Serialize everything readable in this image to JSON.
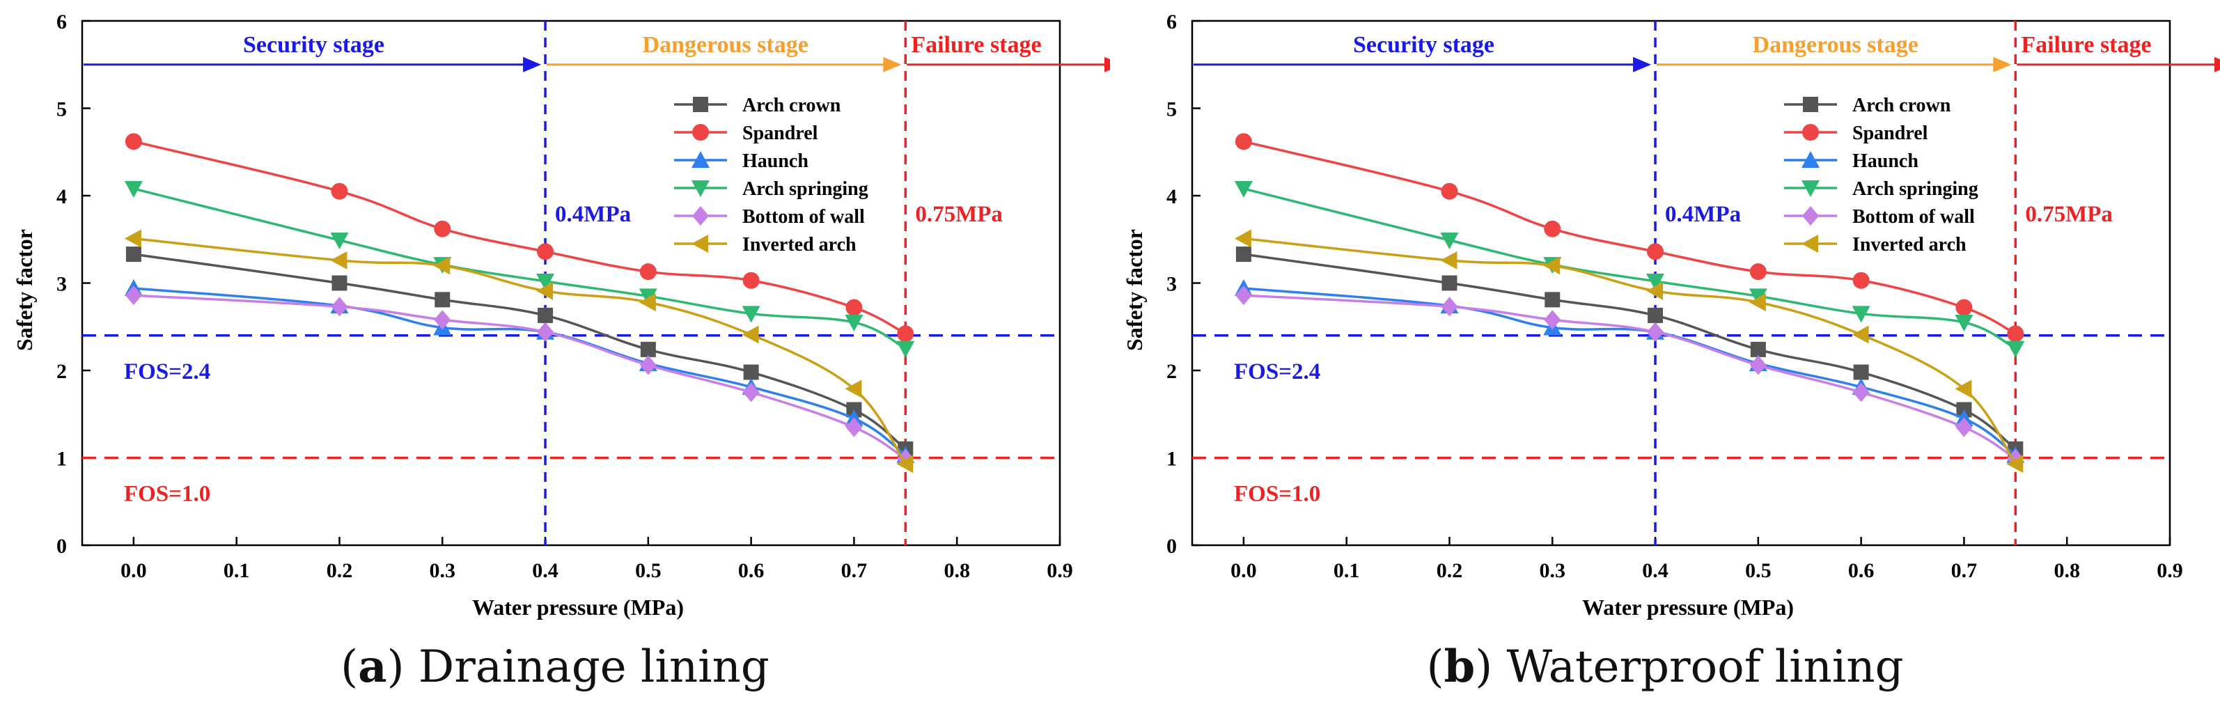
{
  "charts": [
    {
      "letter": "a",
      "caption_text": "Drainage lining"
    },
    {
      "letter": "b",
      "caption_text": "Waterproof lining"
    }
  ],
  "chart_data": [
    {
      "type": "line",
      "caption": "(a) Drainage lining",
      "xlabel": "Water pressure (MPa)",
      "ylabel": "Safety factor",
      "xlim": [
        -0.05,
        0.9
      ],
      "ylim": [
        0,
        6
      ],
      "xticks": [
        "0.0",
        "0.1",
        "0.2",
        "0.3",
        "0.4",
        "0.5",
        "0.6",
        "0.7",
        "0.8",
        "0.9"
      ],
      "yticks": [
        "0",
        "1",
        "2",
        "3",
        "4",
        "5",
        "6"
      ],
      "x": [
        0.0,
        0.2,
        0.3,
        0.4,
        0.5,
        0.6,
        0.7,
        0.75
      ],
      "series": [
        {
          "name": "Arch crown",
          "color": "#555555",
          "marker": "square",
          "values": [
            3.33,
            3.0,
            2.81,
            2.63,
            2.24,
            1.98,
            1.55,
            1.1
          ]
        },
        {
          "name": "Spandrel",
          "color": "#ef4444",
          "marker": "circle",
          "values": [
            4.62,
            4.05,
            3.62,
            3.36,
            3.13,
            3.03,
            2.72,
            2.42
          ]
        },
        {
          "name": "Haunch",
          "color": "#2e7ff0",
          "marker": "triangle-up",
          "values": [
            2.94,
            2.74,
            2.49,
            2.44,
            2.08,
            1.81,
            1.45,
            1.03
          ]
        },
        {
          "name": "Arch springing",
          "color": "#2eb872",
          "marker": "triangle-down",
          "values": [
            4.08,
            3.49,
            3.21,
            3.02,
            2.85,
            2.65,
            2.55,
            2.25
          ]
        },
        {
          "name": "Bottom of wall",
          "color": "#c77fe8",
          "marker": "diamond",
          "values": [
            2.86,
            2.73,
            2.58,
            2.44,
            2.06,
            1.75,
            1.35,
            0.99
          ]
        },
        {
          "name": "Inverted arch",
          "color": "#c9a016",
          "marker": "triangle-left",
          "values": [
            3.51,
            3.26,
            3.2,
            2.91,
            2.78,
            2.41,
            1.79,
            0.93
          ]
        }
      ],
      "reference_lines": {
        "fos_24": {
          "label": "FOS=2.4",
          "value": 2.4,
          "color": "#1a1ae6"
        },
        "fos_10": {
          "label": "FOS=1.0",
          "value": 1.0,
          "color": "#ee2222"
        },
        "p_04": {
          "label": "0.4MPa",
          "value": 0.4,
          "color": "#1a1ae6"
        },
        "p_075": {
          "label": "0.75MPa",
          "value": 0.75,
          "color": "#ee2222"
        }
      },
      "stages": [
        {
          "label": "Security stage",
          "from": -0.05,
          "to": 0.4,
          "color": "#1a1ae6"
        },
        {
          "label": "Dangerous stage",
          "from": 0.4,
          "to": 0.75,
          "color": "#f5a030"
        },
        {
          "label": "Failure stage",
          "from": 0.75,
          "to": 0.9,
          "color": "#ee2222"
        }
      ],
      "legend_position": "top-right",
      "grid": false
    },
    {
      "type": "line",
      "caption": "(b) Waterproof lining",
      "xlabel": "Water pressure (MPa)",
      "ylabel": "Safety factor",
      "xlim": [
        -0.05,
        0.9
      ],
      "ylim": [
        0,
        6
      ],
      "xticks": [
        "0.0",
        "0.1",
        "0.2",
        "0.3",
        "0.4",
        "0.5",
        "0.6",
        "0.7",
        "0.8",
        "0.9"
      ],
      "yticks": [
        "0",
        "1",
        "2",
        "3",
        "4",
        "5",
        "6"
      ],
      "x": [
        0.0,
        0.2,
        0.3,
        0.4,
        0.5,
        0.6,
        0.7,
        0.75
      ],
      "series": [
        {
          "name": "Arch crown",
          "color": "#555555",
          "marker": "square",
          "values": [
            3.33,
            3.0,
            2.81,
            2.63,
            2.24,
            1.98,
            1.55,
            1.1
          ]
        },
        {
          "name": "Spandrel",
          "color": "#ef4444",
          "marker": "circle",
          "values": [
            4.62,
            4.05,
            3.62,
            3.36,
            3.13,
            3.03,
            2.72,
            2.42
          ]
        },
        {
          "name": "Haunch",
          "color": "#2e7ff0",
          "marker": "triangle-up",
          "values": [
            2.94,
            2.74,
            2.49,
            2.44,
            2.08,
            1.81,
            1.45,
            1.03
          ]
        },
        {
          "name": "Arch springing",
          "color": "#2eb872",
          "marker": "triangle-down",
          "values": [
            4.08,
            3.49,
            3.21,
            3.02,
            2.85,
            2.65,
            2.55,
            2.25
          ]
        },
        {
          "name": "Bottom of wall",
          "color": "#c77fe8",
          "marker": "diamond",
          "values": [
            2.86,
            2.73,
            2.58,
            2.44,
            2.06,
            1.75,
            1.35,
            0.99
          ]
        },
        {
          "name": "Inverted arch",
          "color": "#c9a016",
          "marker": "triangle-left",
          "values": [
            3.51,
            3.26,
            3.2,
            2.91,
            2.78,
            2.41,
            1.79,
            0.93
          ]
        }
      ],
      "reference_lines": {
        "fos_24": {
          "label": "FOS=2.4",
          "value": 2.4,
          "color": "#1a1ae6"
        },
        "fos_10": {
          "label": "FOS=1.0",
          "value": 1.0,
          "color": "#ee2222"
        },
        "p_04": {
          "label": "0.4MPa",
          "value": 0.4,
          "color": "#1a1ae6"
        },
        "p_075": {
          "label": "0.75MPa",
          "value": 0.75,
          "color": "#ee2222"
        }
      },
      "stages": [
        {
          "label": "Security stage",
          "from": -0.05,
          "to": 0.4,
          "color": "#1a1ae6"
        },
        {
          "label": "Dangerous stage",
          "from": 0.4,
          "to": 0.75,
          "color": "#f5a030"
        },
        {
          "label": "Failure stage",
          "from": 0.75,
          "to": 0.9,
          "color": "#ee2222"
        }
      ],
      "legend_position": "top-right",
      "grid": false
    }
  ]
}
